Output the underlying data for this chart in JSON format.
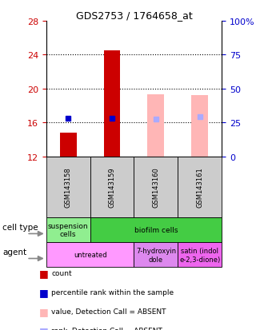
{
  "title": "GDS2753 / 1764658_at",
  "samples": [
    "GSM143158",
    "GSM143159",
    "GSM143160",
    "GSM143161"
  ],
  "ylim": [
    12,
    28
  ],
  "yticks_left": [
    12,
    16,
    20,
    24,
    28
  ],
  "right_tick_positions": [
    12,
    16,
    20,
    24,
    28
  ],
  "right_tick_labels": [
    "0",
    "25",
    "50",
    "75",
    "100%"
  ],
  "ylabel_left_color": "#cc0000",
  "ylabel_right_color": "#0000cc",
  "bar_bottom": 12,
  "red_bars": [
    14.8,
    24.5,
    null,
    null
  ],
  "pink_bars": [
    null,
    null,
    19.3,
    19.2
  ],
  "blue_squares": [
    16.5,
    16.5,
    null,
    null
  ],
  "lavender_squares": [
    null,
    null,
    16.4,
    16.7
  ],
  "red_bar_color": "#cc0000",
  "pink_bar_color": "#ffb6b6",
  "blue_sq_color": "#0000cc",
  "lavender_sq_color": "#aaaaff",
  "sample_box_color": "#cccccc",
  "ct_groups": [
    {
      "start": 0,
      "end": 1,
      "label": "suspension\ncells",
      "color": "#90ee90"
    },
    {
      "start": 1,
      "end": 4,
      "label": "biofilm cells",
      "color": "#44cc44"
    }
  ],
  "ag_groups": [
    {
      "start": 0,
      "end": 2,
      "label": "untreated",
      "color": "#ff99ff"
    },
    {
      "start": 2,
      "end": 3,
      "label": "7-hydroxyin\ndole",
      "color": "#dd88ee"
    },
    {
      "start": 3,
      "end": 4,
      "label": "satin (indol\ne-2,3-dione)",
      "color": "#ee66ee"
    }
  ],
  "legend_items": [
    {
      "color": "#cc0000",
      "label": "count"
    },
    {
      "color": "#0000cc",
      "label": "percentile rank within the sample"
    },
    {
      "color": "#ffb6b6",
      "label": "value, Detection Call = ABSENT"
    },
    {
      "color": "#aaaaff",
      "label": "rank, Detection Call = ABSENT"
    }
  ]
}
